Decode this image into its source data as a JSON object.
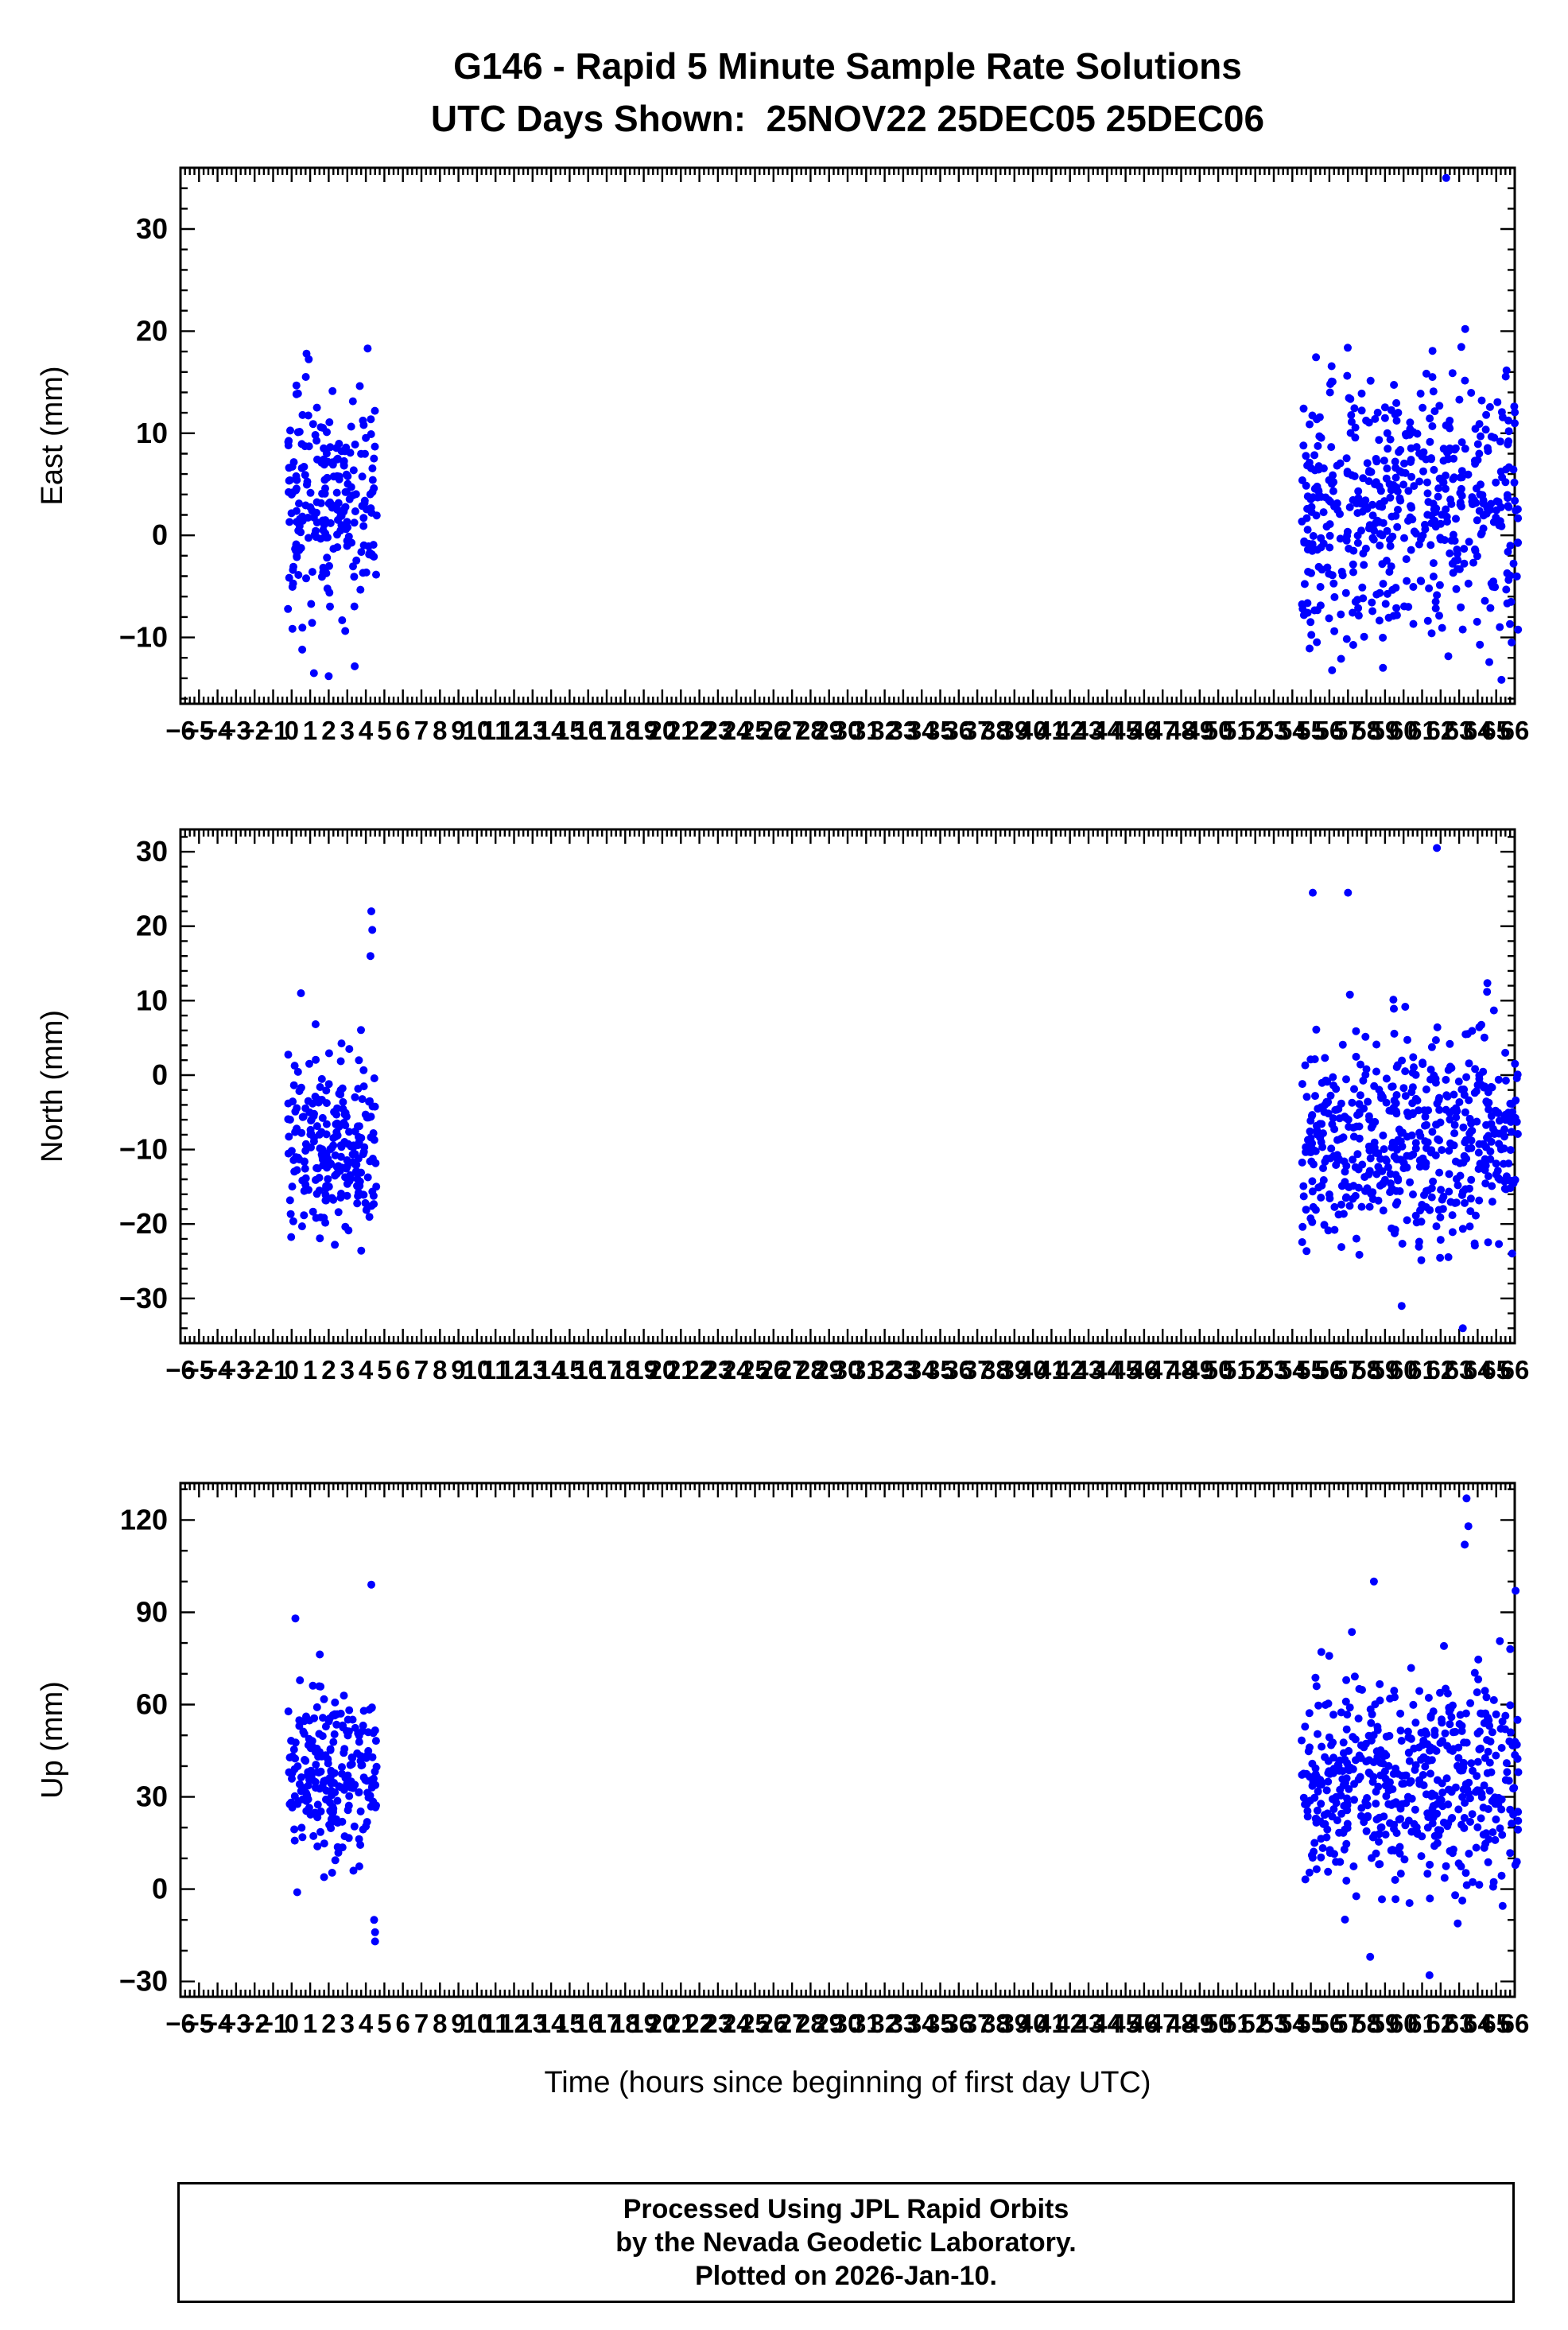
{
  "chart_data": {
    "type": "scatter",
    "suptitle": "G146 - Rapid 5 Minute Sample Rate Solutions",
    "subtitle": "UTC Days Shown:  25NOV22 25DEC05 25DEC06",
    "xlabel": "Time (hours since beginning of first day UTC)",
    "marker_color": "#0000ff",
    "frame_color": "#000000",
    "xlim": [
      -6,
      66
    ],
    "x_major_step": 1,
    "x_minor_step": 0.25,
    "grid": false,
    "legend": "none",
    "panels": [
      {
        "ylabel": "East (mm)",
        "ylim": [
          -16.5,
          36
        ],
        "yticks": [
          -10,
          0,
          10,
          20,
          30
        ],
        "y_minor_step": 2,
        "clusters": [
          {
            "x_range": [
              -0.2,
              4.6
            ],
            "count": 230,
            "mean": 3.5,
            "sd": 5.5,
            "y_clip": [
              -14,
              18
            ],
            "seed": 11
          },
          {
            "x_range": [
              54.5,
              66.2
            ],
            "count": 520,
            "mean": 3.0,
            "sd": 6.5,
            "y_clip": [
              -15,
              21
            ],
            "seed": 12
          }
        ],
        "outliers": [
          [
            62.3,
            35
          ],
          [
            0.8,
            17.8
          ],
          [
            4.1,
            18.3
          ],
          [
            1.2,
            -13.5
          ],
          [
            2.0,
            -13.8
          ]
        ]
      },
      {
        "ylabel": "North (mm)",
        "ylim": [
          -36,
          33
        ],
        "yticks": [
          -30,
          -20,
          -10,
          0,
          10,
          20,
          30
        ],
        "y_minor_step": 2,
        "clusters": [
          {
            "x_range": [
              -0.2,
              4.6
            ],
            "count": 230,
            "mean": -9.0,
            "sd": 6.0,
            "y_clip": [
              -26,
              11
            ],
            "seed": 21
          },
          {
            "x_range": [
              54.5,
              66.2
            ],
            "count": 520,
            "mean": -8.5,
            "sd": 7.0,
            "y_clip": [
              -25,
              17
            ],
            "seed": 22
          }
        ],
        "outliers": [
          [
            4.3,
            22
          ],
          [
            4.35,
            19.5
          ],
          [
            4.25,
            16
          ],
          [
            61.8,
            30.5
          ],
          [
            63.2,
            -34
          ],
          [
            59.9,
            -31
          ],
          [
            57.0,
            24.5
          ],
          [
            55.1,
            24.5
          ],
          [
            0.5,
            11
          ]
        ]
      },
      {
        "ylabel": "Up (mm)",
        "ylim": [
          -35,
          132
        ],
        "yticks": [
          -30,
          0,
          30,
          60,
          90,
          120
        ],
        "y_minor_step": 10,
        "clusters": [
          {
            "x_range": [
              -0.2,
              4.6
            ],
            "count": 230,
            "mean": 37.0,
            "sd": 14.0,
            "y_clip": [
              0,
              77
            ],
            "seed": 31
          },
          {
            "x_range": [
              54.5,
              66.2
            ],
            "count": 520,
            "mean": 34.0,
            "sd": 17.0,
            "y_clip": [
              -12,
              100
            ],
            "seed": 32
          }
        ],
        "outliers": [
          [
            0.3,
            -1
          ],
          [
            4.3,
            99
          ],
          [
            4.45,
            -10
          ],
          [
            4.5,
            -14
          ],
          [
            4.5,
            -17
          ],
          [
            63.4,
            127
          ],
          [
            63.5,
            118
          ],
          [
            63.3,
            112
          ],
          [
            58.4,
            100
          ],
          [
            61.4,
            -28
          ],
          [
            58.2,
            -22
          ],
          [
            0.2,
            88
          ]
        ]
      }
    ]
  },
  "footer": {
    "line1": "Processed Using JPL Rapid Orbits",
    "line2": "by the Nevada Geodetic Laboratory.",
    "line3": "Plotted on 2026-Jan-10."
  }
}
